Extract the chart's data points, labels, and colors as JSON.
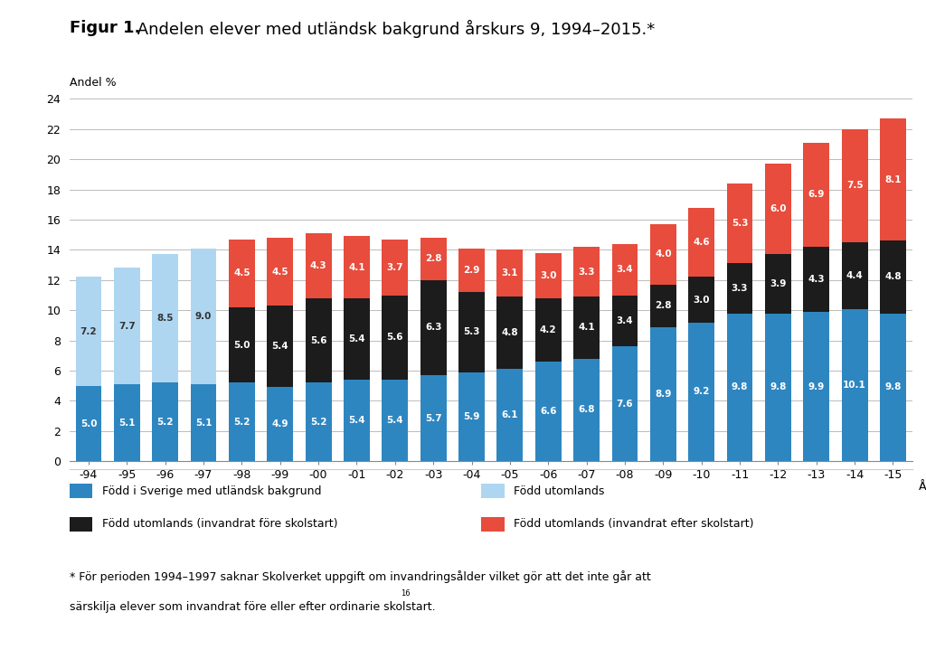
{
  "title_bold": "Figur 1.",
  "title_rest": " Andelen elever med utländsk bakgrund årskurs 9, 1994–2015.*",
  "ylabel": "Andel %",
  "xlabel": "År",
  "years": [
    "-94",
    "-95",
    "-96",
    "-97",
    "-98",
    "-99",
    "-00",
    "-01",
    "-02",
    "-03",
    "-04",
    "-05",
    "-06",
    "-07",
    "-08",
    "-09",
    "-10",
    "-11",
    "-12",
    "-13",
    "-14",
    "-15"
  ],
  "blue": [
    5.0,
    5.1,
    5.2,
    5.1,
    5.2,
    4.9,
    5.2,
    5.4,
    5.4,
    5.7,
    5.9,
    6.1,
    6.6,
    6.8,
    7.6,
    8.9,
    9.2,
    9.8,
    9.8,
    9.9,
    10.1,
    9.8
  ],
  "lightblue": [
    7.2,
    7.7,
    8.5,
    9.0,
    0.0,
    0.0,
    0.0,
    0.0,
    0.0,
    0.0,
    0.0,
    0.0,
    0.0,
    0.0,
    0.0,
    0.0,
    0.0,
    0.0,
    0.0,
    0.0,
    0.0,
    0.0
  ],
  "black": [
    0.0,
    0.0,
    0.0,
    0.0,
    5.0,
    5.4,
    5.6,
    5.4,
    5.6,
    6.3,
    5.3,
    4.8,
    4.2,
    4.1,
    3.4,
    2.8,
    3.0,
    3.3,
    3.9,
    4.3,
    4.4,
    4.8
  ],
  "red": [
    0.0,
    0.0,
    0.0,
    0.0,
    4.5,
    4.5,
    4.3,
    4.1,
    3.7,
    2.8,
    2.9,
    3.1,
    3.0,
    3.3,
    3.4,
    4.0,
    4.6,
    5.3,
    6.0,
    6.9,
    7.5,
    8.1
  ],
  "blue_color": "#2E86C1",
  "lightblue_color": "#AED6F1",
  "black_color": "#1C1C1C",
  "red_color": "#E74C3C",
  "ylim": [
    0,
    24
  ],
  "yticks": [
    0,
    2,
    4,
    6,
    8,
    10,
    12,
    14,
    16,
    18,
    20,
    22,
    24
  ],
  "legend": [
    "Född i Sverige med utländsk bakgrund",
    "Född utomlands",
    "Född utomlands (invandrat före skolstart)",
    "Född utomlands (invandrat efter skolstart)"
  ],
  "footnote_line1": "* För perioden 1994–1997 saknar Skolverket uppgift om invandringsålder vilket gör att det inte går att",
  "footnote_line2": "särskilja elever som invandrat före eller efter ordinarie skolstart.",
  "footnote_super": "16",
  "background_color": "#FFFFFF",
  "label_fontsize": 7.5,
  "title_fontsize": 13,
  "axis_fontsize": 9,
  "footnote_fontsize": 9
}
